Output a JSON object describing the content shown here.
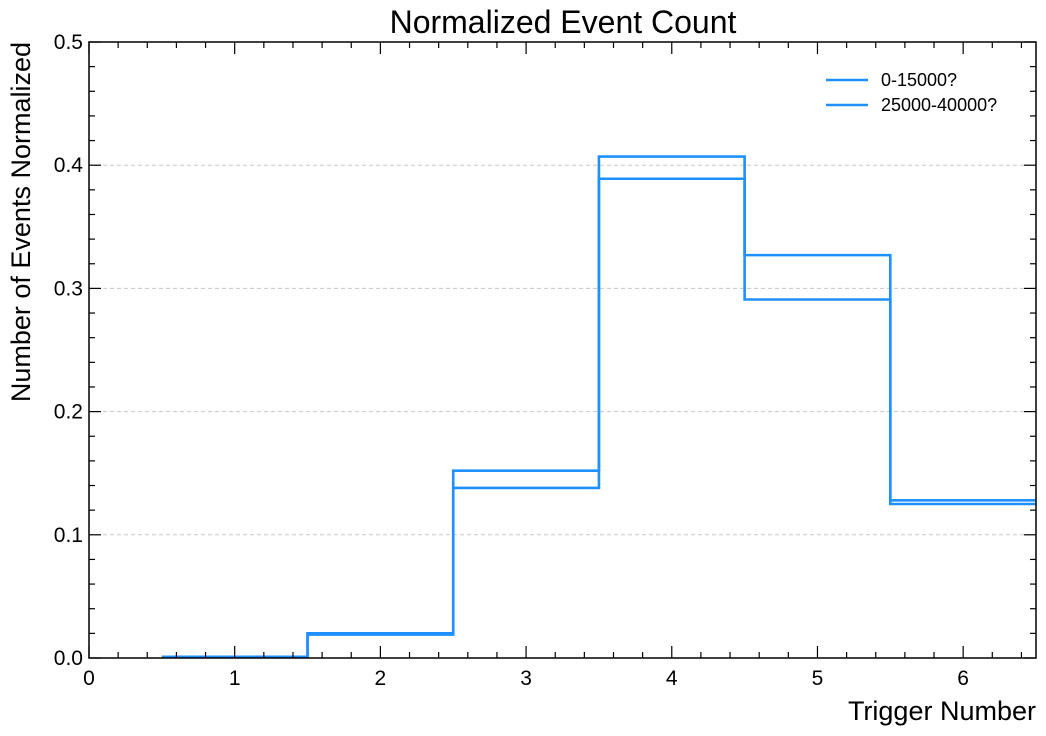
{
  "chart_data": {
    "type": "step",
    "title": "Normalized Event Count",
    "xlabel": "Trigger Number",
    "ylabel": "Number of Events Normalized",
    "xlim": [
      0,
      6.5
    ],
    "ylim": [
      0,
      0.5
    ],
    "xticks": [
      0,
      1,
      2,
      3,
      4,
      5,
      6
    ],
    "xtick_labels": [
      "0",
      "1",
      "2",
      "3",
      "4",
      "5",
      "6"
    ],
    "yticks": [
      0.0,
      0.1,
      0.2,
      0.3,
      0.4,
      0.5
    ],
    "ytick_labels": [
      "0.0",
      "0.1",
      "0.2",
      "0.3",
      "0.4",
      "0.5"
    ],
    "grid": "horizontal-dashed",
    "legend_position": "top-right",
    "bin_edges": [
      0.5,
      1.5,
      2.5,
      3.5,
      4.5,
      5.5,
      6.5
    ],
    "bin_centers": [
      1,
      2,
      3,
      4,
      5,
      6
    ],
    "series": [
      {
        "name": "0-15000?",
        "color": "#1e90ff",
        "values": [
          0.001,
          0.02,
          0.138,
          0.389,
          0.327,
          0.125
        ]
      },
      {
        "name": "25000-40000?",
        "color": "#1e90ff",
        "values": [
          0.001,
          0.019,
          0.152,
          0.407,
          0.291,
          0.128
        ]
      }
    ]
  }
}
